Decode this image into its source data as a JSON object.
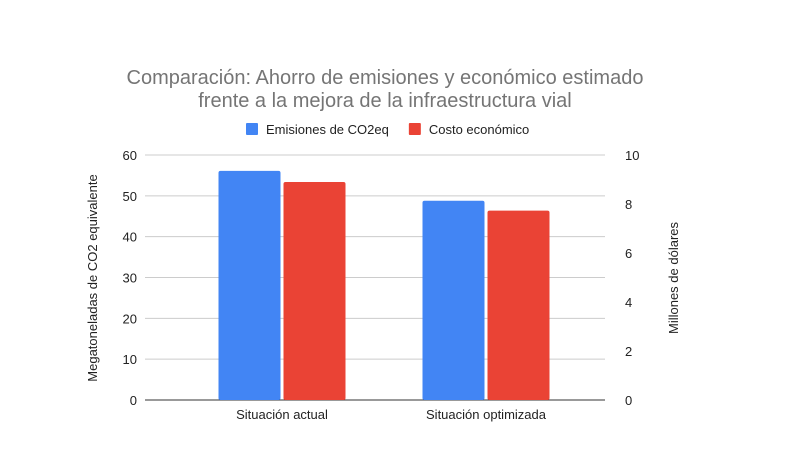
{
  "chart_data": {
    "type": "bar",
    "title": [
      "Comparación: Ahorro de emisiones y económico estimado",
      "frente a la mejora de la infraestructura vial"
    ],
    "categories": [
      "Situación actual",
      "Situación optimizada"
    ],
    "series": [
      {
        "name": "Emisiones de CO2eq",
        "axis": "left",
        "color": "#4285f4",
        "values": [
          56.1,
          48.8
        ]
      },
      {
        "name": "Costo económico",
        "axis": "right",
        "color": "#ea4335",
        "values": [
          8.9,
          7.73
        ]
      }
    ],
    "ylabel": "Megatoneladas de CO2 equivalente",
    "y2label": "Millones de dólares",
    "ylim": [
      0,
      60
    ],
    "y2lim": [
      0,
      10
    ],
    "yticks": [
      "0",
      "10",
      "20",
      "30",
      "40",
      "50",
      "60"
    ],
    "y2ticks": [
      "0",
      "2",
      "4",
      "6",
      "8",
      "10"
    ],
    "grid": true,
    "legend": "top"
  }
}
